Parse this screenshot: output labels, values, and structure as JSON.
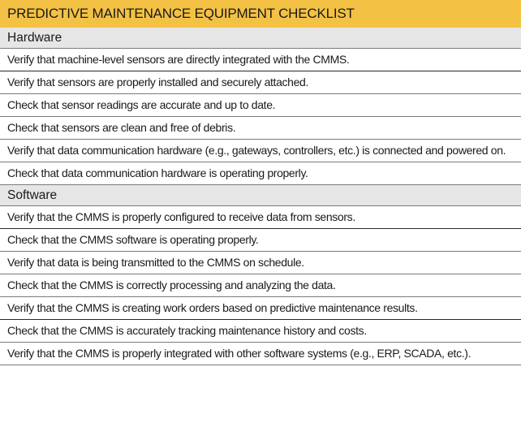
{
  "title": "PREDICTIVE MAINTENANCE EQUIPMENT CHECKLIST",
  "sections": [
    {
      "label": "Hardware",
      "items": [
        "Verify that machine-level sensors are directly integrated with the CMMS.",
        "Verify that sensors are properly installed and securely attached.",
        "Check that sensor readings are accurate and up to date.",
        "Check that sensors are clean and free of debris.",
        "Verify that data communication hardware (e.g., gateways, controllers, etc.) is connected and powered on.",
        "Check that data communication hardware is operating properly."
      ]
    },
    {
      "label": "Software",
      "items": [
        "Verify that the CMMS is properly configured to receive data from sensors.",
        "Check that the CMMS software is operating properly.",
        "Verify that data is being transmitted to the CMMS on schedule.",
        "Check that the CMMS is correctly processing and analyzing the data.",
        "Verify that the CMMS is creating work orders based on predictive maintenance results.",
        "Check that the CMMS is accurately tracking maintenance history and costs.",
        "Verify that the CMMS is properly integrated with other software systems (e.g., ERP, SCADA, etc.)."
      ]
    }
  ],
  "colors": {
    "title_bg": "#f3c244",
    "section_bg": "#e6e6e6",
    "rule": "#7a7a7a"
  }
}
